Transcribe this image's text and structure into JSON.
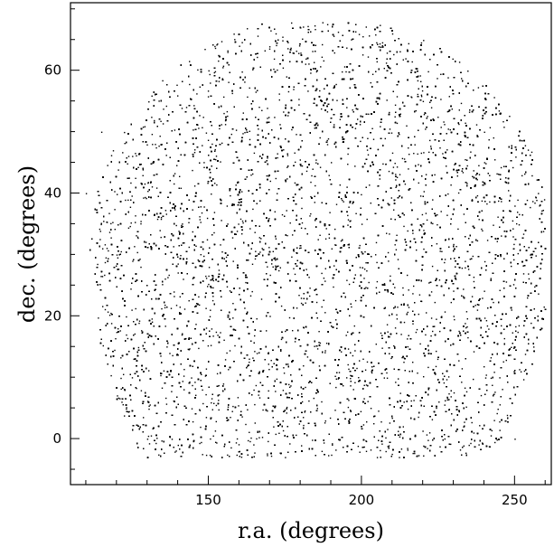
{
  "chart_data": {
    "type": "scatter",
    "title": "",
    "xlabel": "r.a. (degrees)",
    "ylabel": "dec. (degrees)",
    "xlim": [
      105,
      262
    ],
    "ylim": [
      -7.5,
      71
    ],
    "xticks": [
      150,
      200,
      250
    ],
    "yticks": [
      0,
      20,
      40,
      60
    ],
    "grid": false,
    "legend": "none",
    "point_color": "#000000",
    "footprint": {
      "description_units": "degrees",
      "center_ra": 187,
      "center_dec": 30,
      "upper_dec_max": 68,
      "lower_dec_min": -3,
      "ra_min": 110,
      "ra_max": 260
    },
    "density_points": [
      [
        110,
        40
      ],
      [
        115,
        50
      ],
      [
        120,
        30
      ],
      [
        125,
        10
      ],
      [
        130,
        0
      ],
      [
        140,
        -1
      ],
      [
        150,
        60
      ],
      [
        160,
        64
      ],
      [
        170,
        20
      ],
      [
        175,
        -3
      ],
      [
        180,
        67
      ],
      [
        185,
        45
      ],
      [
        195,
        10
      ],
      [
        200,
        35
      ],
      [
        205,
        -3
      ],
      [
        210,
        66
      ],
      [
        220,
        55
      ],
      [
        230,
        20
      ],
      [
        235,
        -1
      ],
      [
        240,
        50
      ],
      [
        245,
        10
      ],
      [
        250,
        0
      ],
      [
        255,
        30
      ],
      [
        258,
        38
      ]
    ]
  }
}
